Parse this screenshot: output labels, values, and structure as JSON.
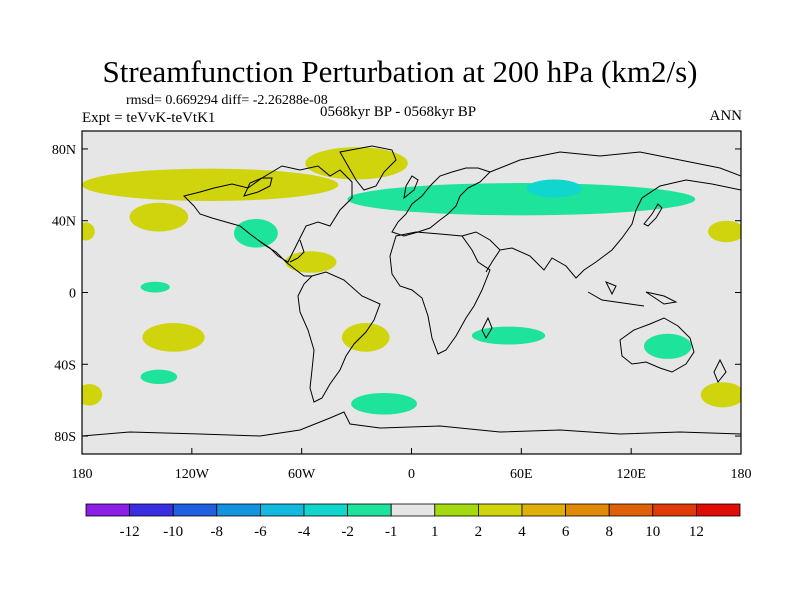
{
  "title": "Streamfunction Perturbation at 200 hPa (km2/s)",
  "stats": "rmsd= 0.669294 diff= -2.26288e-08",
  "experiment": "Expt = teVvK-teVtK1",
  "period": "0568kyr BP - 0568kyr BP",
  "season": "ANN",
  "map": {
    "projection": "cylindrical equidistant",
    "lon_range": [
      -180,
      180
    ],
    "lat_range": [
      -90,
      90
    ],
    "ocean_land_fill": "#e6e6e6",
    "coastline_color": "#000000",
    "x_ticks": [
      {
        "value": -180,
        "label": "180"
      },
      {
        "value": -120,
        "label": "120W"
      },
      {
        "value": -60,
        "label": "60W"
      },
      {
        "value": 0,
        "label": "0"
      },
      {
        "value": 60,
        "label": "60E"
      },
      {
        "value": 120,
        "label": "120E"
      },
      {
        "value": 180,
        "label": "180"
      }
    ],
    "y_ticks": [
      {
        "value": 80,
        "label": "80N"
      },
      {
        "value": 40,
        "label": "40N"
      },
      {
        "value": 0,
        "label": "0"
      },
      {
        "value": -40,
        "label": "40S"
      },
      {
        "value": -80,
        "label": "80S"
      }
    ]
  },
  "colorbar": {
    "levels": [
      "-12",
      "-10",
      "-8",
      "-6",
      "-4",
      "-2",
      "-1",
      "1",
      "2",
      "4",
      "6",
      "8",
      "10",
      "12"
    ],
    "colors": [
      "#8b1fe6",
      "#3a2fe0",
      "#1f5fe0",
      "#1493e0",
      "#11b9df",
      "#10d6cd",
      "#1ee39a",
      "#e6e6e6",
      "#a3db10",
      "#cfd40c",
      "#e0b00a",
      "#e08a08",
      "#e06006",
      "#e03a06",
      "#e00c06"
    ]
  },
  "anomalies": [
    {
      "lon": -110,
      "lat": 60,
      "rx": 70,
      "ry": 9,
      "level": "2"
    },
    {
      "lon": -30,
      "lat": 72,
      "rx": 28,
      "ry": 9,
      "level": "2"
    },
    {
      "lon": 60,
      "lat": 52,
      "rx": 95,
      "ry": 9,
      "level": "-1"
    },
    {
      "lon": 78,
      "lat": 58,
      "rx": 15,
      "ry": 5,
      "level": "-2"
    },
    {
      "lon": -138,
      "lat": 42,
      "rx": 16,
      "ry": 8,
      "level": "2"
    },
    {
      "lon": -178,
      "lat": 34,
      "rx": 5,
      "ry": 5,
      "level": "2"
    },
    {
      "lon": -85,
      "lat": 33,
      "rx": 12,
      "ry": 8,
      "level": "-1"
    },
    {
      "lon": -55,
      "lat": 17,
      "rx": 14,
      "ry": 6,
      "level": "2"
    },
    {
      "lon": -140,
      "lat": 3,
      "rx": 8,
      "ry": 3,
      "level": "-1"
    },
    {
      "lon": -130,
      "lat": -25,
      "rx": 17,
      "ry": 8,
      "level": "2"
    },
    {
      "lon": -138,
      "lat": -47,
      "rx": 10,
      "ry": 4,
      "level": "-1"
    },
    {
      "lon": -176,
      "lat": -57,
      "rx": 7,
      "ry": 6,
      "level": "2"
    },
    {
      "lon": -25,
      "lat": -25,
      "rx": 13,
      "ry": 8,
      "level": "2"
    },
    {
      "lon": -15,
      "lat": -62,
      "rx": 18,
      "ry": 6,
      "level": "-1"
    },
    {
      "lon": 53,
      "lat": -24,
      "rx": 20,
      "ry": 5,
      "level": "-1"
    },
    {
      "lon": 140,
      "lat": -30,
      "rx": 13,
      "ry": 7,
      "level": "-1"
    },
    {
      "lon": 170,
      "lat": -57,
      "rx": 12,
      "ry": 7,
      "level": "2"
    },
    {
      "lon": 172,
      "lat": 34,
      "rx": 10,
      "ry": 6,
      "level": "2"
    }
  ]
}
